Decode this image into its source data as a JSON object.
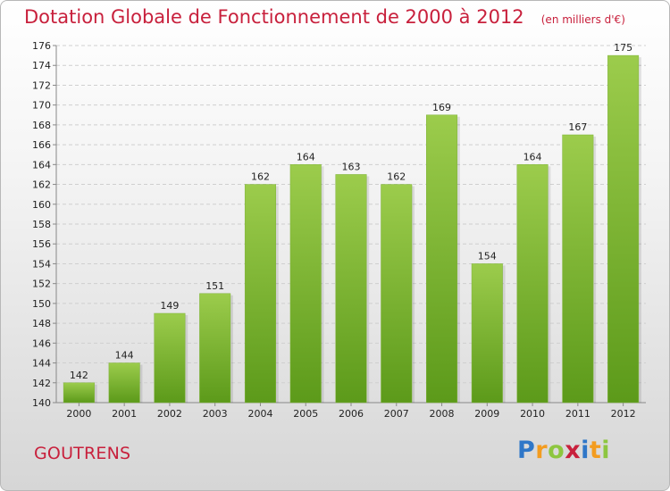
{
  "header": {
    "title": "Dotation Globale de Fonctionnement de 2000 à 2012",
    "subtitle": "(en milliers d'€)"
  },
  "footer": {
    "commune": "GOUTRENS",
    "logo": "Proxiti",
    "logo_letters": [
      {
        "char": "P",
        "color": "#2f77c8"
      },
      {
        "char": "r",
        "color": "#f39c1f"
      },
      {
        "char": "o",
        "color": "#8dc63f"
      },
      {
        "char": "x",
        "color": "#c8203c"
      },
      {
        "char": "i",
        "color": "#2f77c8"
      },
      {
        "char": "t",
        "color": "#f39c1f"
      },
      {
        "char": "i",
        "color": "#8dc63f"
      }
    ]
  },
  "colors": {
    "bar_light": "#9ccc4c",
    "bar_dark": "#5c9a1a",
    "accent": "#c8203c"
  },
  "chart_data": {
    "type": "bar",
    "title": "Dotation Globale de Fonctionnement de 2000 à 2012",
    "subtitle": "(en milliers d'€)",
    "categories": [
      "2000",
      "2001",
      "2002",
      "2003",
      "2004",
      "2005",
      "2006",
      "2007",
      "2008",
      "2009",
      "2010",
      "2011",
      "2012"
    ],
    "values": [
      142,
      144,
      149,
      151,
      162,
      164,
      163,
      162,
      169,
      154,
      164,
      167,
      175
    ],
    "ylim": [
      140,
      176
    ],
    "yticks": [
      140,
      142,
      144,
      146,
      148,
      150,
      152,
      154,
      156,
      158,
      160,
      162,
      164,
      166,
      168,
      170,
      172,
      174,
      176
    ],
    "grid": true,
    "data_labels": true
  }
}
